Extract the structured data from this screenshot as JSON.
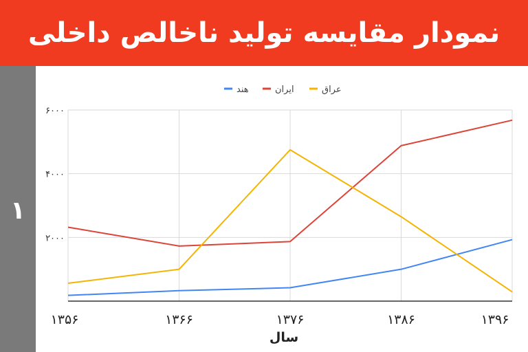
{
  "page": {
    "title": "نمودار مقایسه تولید ناخالص داخلی",
    "side_number": "۱",
    "banner_color": "#f03b20",
    "side_color": "#7a7a7a"
  },
  "chart_data": {
    "type": "line",
    "title": "نمودار مقایسه تولید ناخالص داخلی",
    "xlabel": "سال",
    "ylabel": "",
    "x": [
      1356,
      1366,
      1376,
      1386,
      1396
    ],
    "x_tick_labels": [
      "۱۳۵۶",
      "۱۳۶۶",
      "۱۳۷۶",
      "۱۳۸۶",
      "۱۳۹۶"
    ],
    "ylim": [
      0,
      6000
    ],
    "y_ticks": [
      2000,
      4000,
      6000
    ],
    "y_tick_labels": [
      "۲۰۰۰",
      "۴۰۰۰",
      "۶۰۰۰"
    ],
    "grid": true,
    "legend_position": "top",
    "series": [
      {
        "name": "هند",
        "color": "#4285f4",
        "values": [
          180,
          330,
          420,
          1000,
          1930
        ]
      },
      {
        "name": "ایران",
        "color": "#db4437",
        "values": [
          2320,
          1730,
          1870,
          4880,
          5680
        ]
      },
      {
        "name": "عراق",
        "color": "#f4b400",
        "values": [
          560,
          1000,
          4750,
          2650,
          290
        ]
      }
    ]
  }
}
